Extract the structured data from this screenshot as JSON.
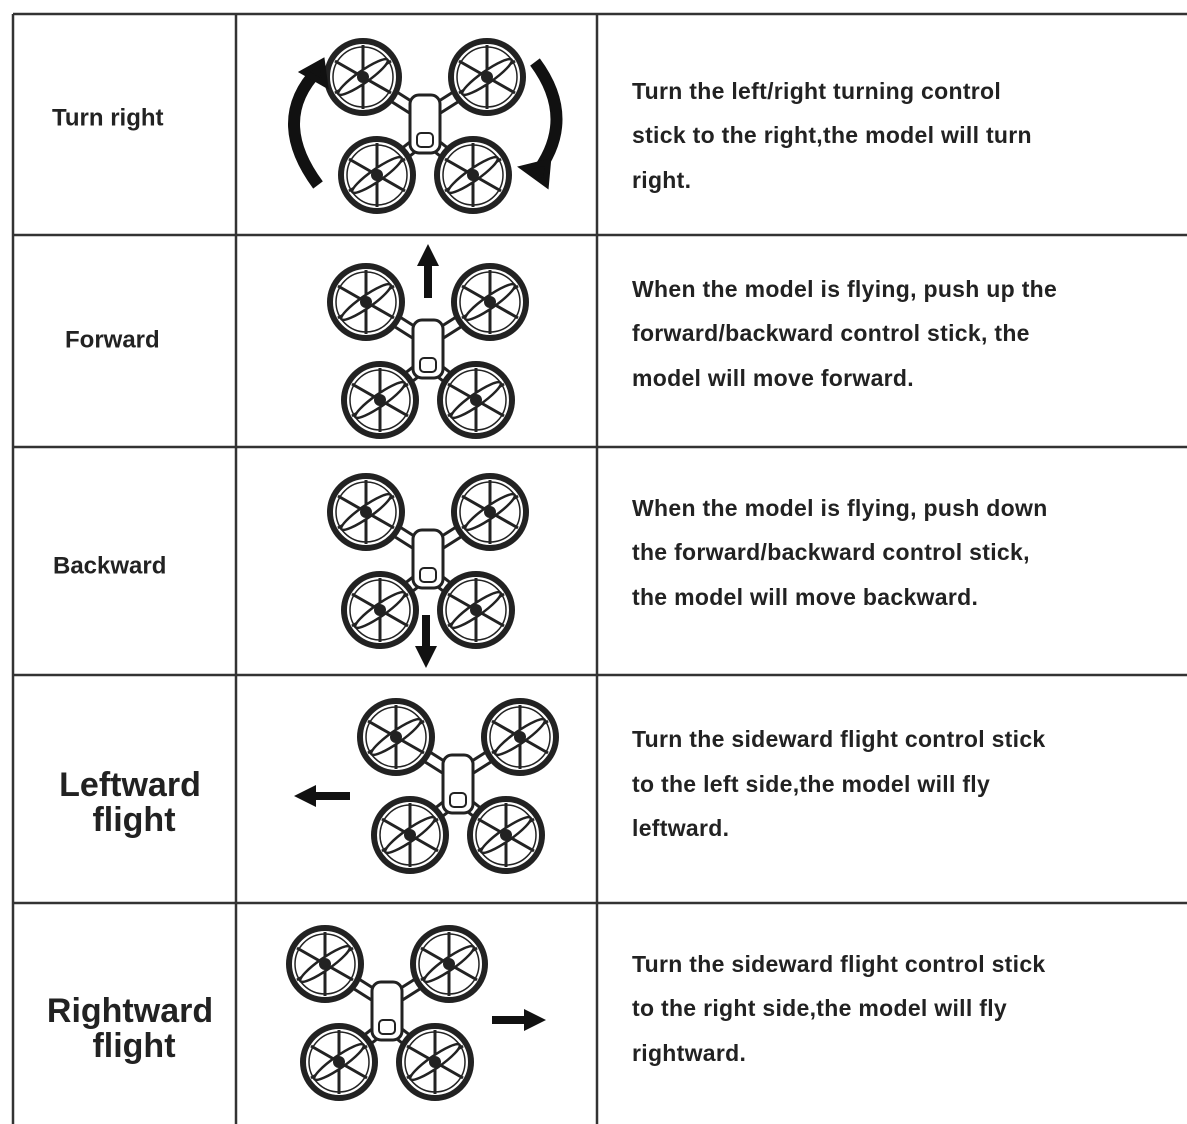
{
  "rows": [
    {
      "action": [
        "Turn right"
      ],
      "description": [
        "Turn the left/right turning control",
        "stick to the right,the model will turn",
        "right."
      ]
    },
    {
      "action": [
        "Forward"
      ],
      "description": [
        "When the model is flying, push up the",
        "forward/backward control stick, the",
        "model will move forward."
      ]
    },
    {
      "action": [
        "Backward"
      ],
      "description": [
        "When the model is flying, push down",
        "the forward/backward control stick,",
        "the model will move backward."
      ]
    },
    {
      "action": [
        "Leftward",
        "flight"
      ],
      "description": [
        "Turn the sideward flight control stick",
        "to the left side,the model will fly",
        "leftward."
      ]
    },
    {
      "action": [
        "Rightward",
        "flight"
      ],
      "description": [
        "Turn the sideward flight control stick",
        "to the right side,the model will fly",
        "rightward."
      ]
    }
  ]
}
